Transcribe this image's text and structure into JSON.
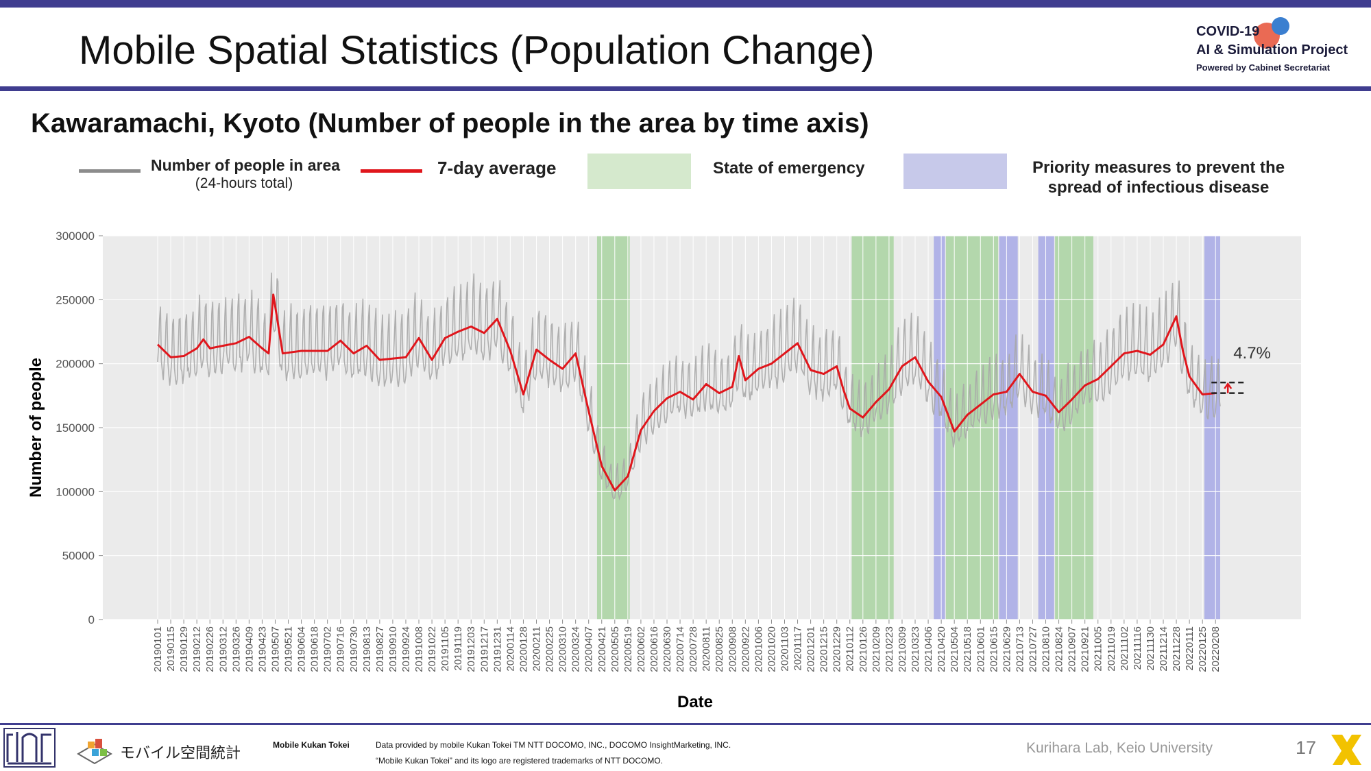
{
  "header": {
    "title": "Mobile Spatial Statistics (Population Change)",
    "logo_line1": "COVID-19",
    "logo_line2": "AI & Simulation Project",
    "logo_line3": "Powered by Cabinet Secretariat"
  },
  "subtitle": "Kawaramachi, Kyoto (Number of people in the area by time axis)",
  "legend": {
    "people_line1": "Number of people in area",
    "people_line2": "(24-hours total)",
    "avg": "7-day average",
    "emergency": "State of emergency",
    "priority_line1": "Priority measures to prevent the",
    "priority_line2": "spread of infectious disease"
  },
  "colors": {
    "accent_bar": "#3f3d8f",
    "daily": "#a9a9a9",
    "avg": "#e0161c",
    "emergency": "#a9d3a1",
    "priority": "#a7a9e6",
    "plot_bg": "#ebebeb"
  },
  "chart_data": {
    "type": "line",
    "xlabel": "Date",
    "ylabel": "Number of people",
    "ylim": [
      0,
      300000
    ],
    "yticks": [
      0,
      50000,
      100000,
      150000,
      200000,
      250000,
      300000
    ],
    "x_start": "20190101",
    "x_end": "20220213",
    "xticks": [
      "20190101",
      "20190115",
      "20190129",
      "20190212",
      "20190226",
      "20190312",
      "20190326",
      "20190409",
      "20190423",
      "20190507",
      "20190521",
      "20190604",
      "20190618",
      "20190702",
      "20190716",
      "20190730",
      "20190813",
      "20190827",
      "20190910",
      "20190924",
      "20191008",
      "20191022",
      "20191105",
      "20191119",
      "20191203",
      "20191217",
      "20191231",
      "20200114",
      "20200128",
      "20200211",
      "20200225",
      "20200310",
      "20200324",
      "20200407",
      "20200421",
      "20200505",
      "20200519",
      "20200602",
      "20200616",
      "20200630",
      "20200714",
      "20200728",
      "20200811",
      "20200825",
      "20200908",
      "20200922",
      "20201006",
      "20201020",
      "20201103",
      "20201117",
      "20201201",
      "20201215",
      "20201229",
      "20210112",
      "20210126",
      "20210209",
      "20210223",
      "20210309",
      "20210323",
      "20210406",
      "20210420",
      "20210504",
      "20210518",
      "20210601",
      "20210615",
      "20210629",
      "20210713",
      "20210727",
      "20210810",
      "20210824",
      "20210907",
      "20210921",
      "20211005",
      "20211019",
      "20211102",
      "20211116",
      "20211130",
      "20211214",
      "20211228",
      "20220111",
      "20220125",
      "20220208"
    ],
    "grid": true,
    "legend_position": "top",
    "shaded_periods": [
      {
        "kind": "emergency",
        "start": "20200416",
        "end": "20200521"
      },
      {
        "kind": "emergency",
        "start": "20210114",
        "end": "20210228"
      },
      {
        "kind": "priority",
        "start": "20210412",
        "end": "20210424"
      },
      {
        "kind": "emergency",
        "start": "20210425",
        "end": "20210620"
      },
      {
        "kind": "priority",
        "start": "20210621",
        "end": "20210711"
      },
      {
        "kind": "priority",
        "start": "20210802",
        "end": "20210819"
      },
      {
        "kind": "emergency",
        "start": "20210820",
        "end": "20210930"
      },
      {
        "kind": "priority",
        "start": "20220127",
        "end": "20220213"
      }
    ],
    "series": [
      {
        "name": "7-day average",
        "points": [
          [
            "20190101",
            215000
          ],
          [
            "20190115",
            205000
          ],
          [
            "20190129",
            206000
          ],
          [
            "20190212",
            212000
          ],
          [
            "20190219",
            219000
          ],
          [
            "20190226",
            212000
          ],
          [
            "20190312",
            214000
          ],
          [
            "20190326",
            216000
          ],
          [
            "20190409",
            221000
          ],
          [
            "20190423",
            212000
          ],
          [
            "20190430",
            208000
          ],
          [
            "20190505",
            254000
          ],
          [
            "20190515",
            208000
          ],
          [
            "20190604",
            210000
          ],
          [
            "20190702",
            210000
          ],
          [
            "20190716",
            218000
          ],
          [
            "20190730",
            208000
          ],
          [
            "20190813",
            214000
          ],
          [
            "20190827",
            203000
          ],
          [
            "20190924",
            205000
          ],
          [
            "20191008",
            220000
          ],
          [
            "20191022",
            203000
          ],
          [
            "20191105",
            220000
          ],
          [
            "20191119",
            225000
          ],
          [
            "20191203",
            229000
          ],
          [
            "20191217",
            224000
          ],
          [
            "20191231",
            235000
          ],
          [
            "20200114",
            210000
          ],
          [
            "20200128",
            176000
          ],
          [
            "20200211",
            211000
          ],
          [
            "20200225",
            203000
          ],
          [
            "20200310",
            196000
          ],
          [
            "20200324",
            208000
          ],
          [
            "20200407",
            163000
          ],
          [
            "20200421",
            120000
          ],
          [
            "20200505",
            101000
          ],
          [
            "20200519",
            112000
          ],
          [
            "20200602",
            148000
          ],
          [
            "20200616",
            163000
          ],
          [
            "20200630",
            173000
          ],
          [
            "20200714",
            178000
          ],
          [
            "20200728",
            172000
          ],
          [
            "20200811",
            184000
          ],
          [
            "20200825",
            177000
          ],
          [
            "20200908",
            182000
          ],
          [
            "20200915",
            206000
          ],
          [
            "20200922",
            187000
          ],
          [
            "20201006",
            196000
          ],
          [
            "20201020",
            200000
          ],
          [
            "20201103",
            208000
          ],
          [
            "20201117",
            216000
          ],
          [
            "20201201",
            195000
          ],
          [
            "20201215",
            192000
          ],
          [
            "20201229",
            198000
          ],
          [
            "20210105",
            180000
          ],
          [
            "20210112",
            165000
          ],
          [
            "20210126",
            158000
          ],
          [
            "20210209",
            170000
          ],
          [
            "20210223",
            180000
          ],
          [
            "20210309",
            198000
          ],
          [
            "20210323",
            205000
          ],
          [
            "20210406",
            186000
          ],
          [
            "20210420",
            174000
          ],
          [
            "20210504",
            147000
          ],
          [
            "20210518",
            160000
          ],
          [
            "20210601",
            168000
          ],
          [
            "20210615",
            176000
          ],
          [
            "20210629",
            178000
          ],
          [
            "20210713",
            192000
          ],
          [
            "20210727",
            178000
          ],
          [
            "20210810",
            175000
          ],
          [
            "20210824",
            162000
          ],
          [
            "20210907",
            172000
          ],
          [
            "20210921",
            183000
          ],
          [
            "20211005",
            188000
          ],
          [
            "20211019",
            198000
          ],
          [
            "20211102",
            208000
          ],
          [
            "20211116",
            210000
          ],
          [
            "20211130",
            207000
          ],
          [
            "20211214",
            215000
          ],
          [
            "20211228",
            237000
          ],
          [
            "20220104",
            210000
          ],
          [
            "20220111",
            190000
          ],
          [
            "20220125",
            176000
          ],
          [
            "20220208",
            177000
          ]
        ]
      }
    ],
    "annotations": [
      {
        "text": "4.7%"
      }
    ]
  },
  "footer": {
    "brand": "Mobile Kukan Tokei",
    "logo_text": "モバイル空間統計",
    "credit_line1": "Data provided by mobile Kukan Tokei TM NTT DOCOMO, INC., DOCOMO InsightMarketing, INC.",
    "credit_line2": "“Mobile Kukan Tokei” and its logo are registered trademarks of NTT DOCOMO.",
    "lab": "Kurihara Lab, Keio University",
    "page": "17"
  }
}
